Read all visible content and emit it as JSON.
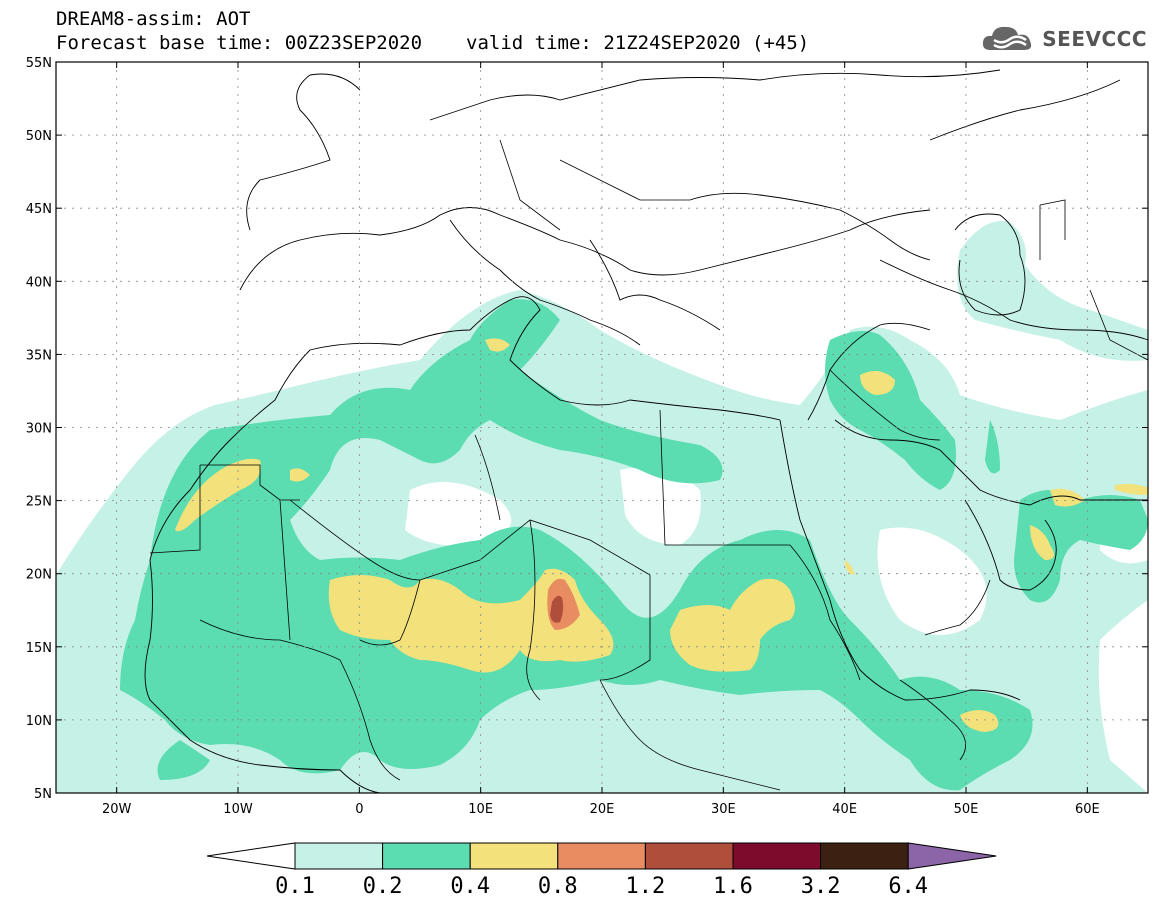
{
  "header": {
    "line1": "DREAM8-assim: AOT",
    "base_time": "Forecast base time: 00Z23SEP2020",
    "valid_time": "valid time: 21Z24SEP2020 (+45)"
  },
  "logo": {
    "text": "SEEVCCC",
    "icon": "cloud-icon"
  },
  "map": {
    "lon_range": [
      -25,
      65
    ],
    "lat_range": [
      5,
      55
    ],
    "lat_ticks": [
      "55N",
      "50N",
      "45N",
      "40N",
      "35N",
      "30N",
      "25N",
      "20N",
      "15N",
      "10N",
      "5N"
    ],
    "lon_ticks": [
      "20W",
      "10W",
      "0",
      "10E",
      "20E",
      "30E",
      "40E",
      "50E",
      "60E"
    ],
    "grid": "dotted"
  },
  "legend": {
    "levels": [
      "0.1",
      "0.2",
      "0.4",
      "0.8",
      "1.2",
      "1.6",
      "3.2",
      "6.4"
    ],
    "colors": [
      "#ffffff",
      "#c6f1e6",
      "#5bdcb1",
      "#f3e27c",
      "#e88c62",
      "#b04e3c",
      "#7d0c2c",
      "#3c2113",
      "#8c65a8"
    ]
  }
}
